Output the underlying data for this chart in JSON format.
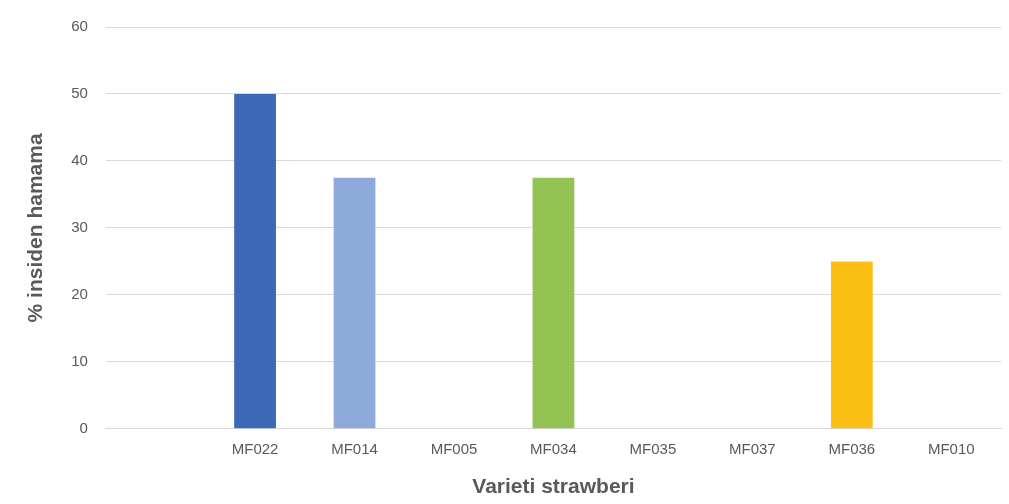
{
  "chart_data": {
    "type": "bar",
    "xlabel": "Varieti strawberi",
    "ylabel": "% insiden hamama",
    "categories": [
      null,
      "MF022",
      "MF014",
      "MF005",
      "MF034",
      "MF035",
      "MF037",
      "MF036",
      "MF010"
    ],
    "values": [
      0,
      50,
      37.5,
      0,
      37.5,
      0,
      0,
      25,
      0
    ],
    "colors": [
      "#4472c4",
      "#3d68b8",
      "#8eaadb",
      "#a5a5a5",
      "#92c353",
      "#5b9bd5",
      "#ed7d31",
      "#fbbf16",
      "#70ad47"
    ],
    "ylim": [
      0,
      60
    ],
    "yticks": [
      0,
      10,
      20,
      30,
      40,
      50,
      60
    ],
    "grid": "y",
    "legend": false
  }
}
